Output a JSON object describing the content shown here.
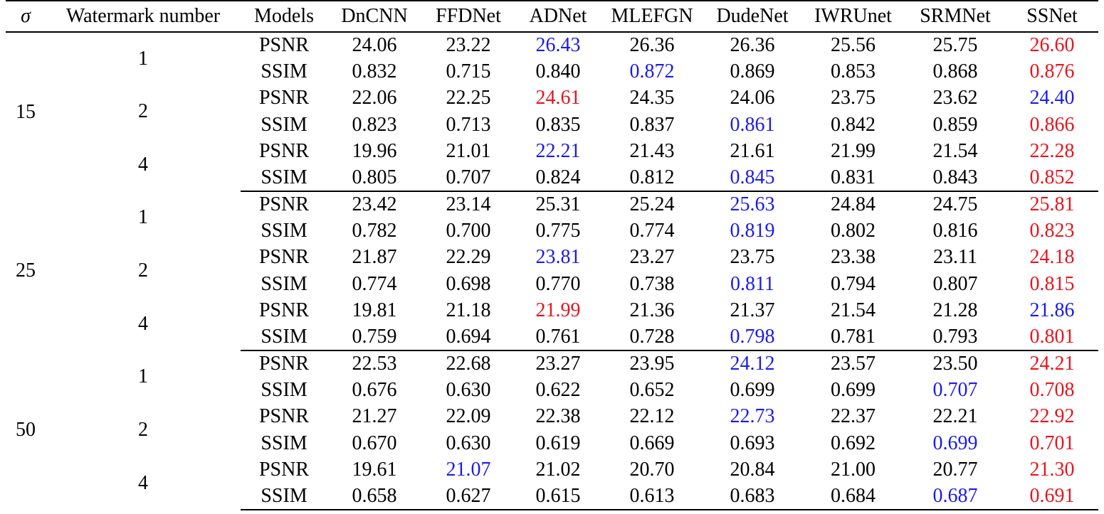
{
  "table": {
    "headers": [
      "σ",
      "Watermark number",
      "Models",
      "DnCNN",
      "FFDNet",
      "ADNet",
      "MLEFGN",
      "DudeNet",
      "IWRUnet",
      "SRMNet",
      "SSNet"
    ],
    "colors": {
      "best": "#e8141c",
      "second": "#1a1af0"
    },
    "groups": [
      {
        "sigma": "15",
        "watermarks": [
          {
            "number": "1",
            "rows": [
              {
                "metric": "PSNR",
                "values": [
                  "24.06",
                  "23.22",
                  "26.43",
                  "26.36",
                  "26.36",
                  "25.56",
                  "25.75",
                  "26.60"
                ],
                "best_index": 7,
                "second_index": 2
              },
              {
                "metric": "SSIM",
                "values": [
                  "0.832",
                  "0.715",
                  "0.840",
                  "0.872",
                  "0.869",
                  "0.853",
                  "0.868",
                  "0.876"
                ],
                "best_index": 7,
                "second_index": 3
              }
            ]
          },
          {
            "number": "2",
            "rows": [
              {
                "metric": "PSNR",
                "values": [
                  "22.06",
                  "22.25",
                  "24.61",
                  "24.35",
                  "24.06",
                  "23.75",
                  "23.62",
                  "24.40"
                ],
                "best_index": 2,
                "second_index": 7
              },
              {
                "metric": "SSIM",
                "values": [
                  "0.823",
                  "0.713",
                  "0.835",
                  "0.837",
                  "0.861",
                  "0.842",
                  "0.859",
                  "0.866"
                ],
                "best_index": 7,
                "second_index": 4
              }
            ]
          },
          {
            "number": "4",
            "rows": [
              {
                "metric": "PSNR",
                "values": [
                  "19.96",
                  "21.01",
                  "22.21",
                  "21.43",
                  "21.61",
                  "21.99",
                  "21.54",
                  "22.28"
                ],
                "best_index": 7,
                "second_index": 2
              },
              {
                "metric": "SSIM",
                "values": [
                  "0.805",
                  "0.707",
                  "0.824",
                  "0.812",
                  "0.845",
                  "0.831",
                  "0.843",
                  "0.852"
                ],
                "best_index": 7,
                "second_index": 4
              }
            ]
          }
        ]
      },
      {
        "sigma": "25",
        "watermarks": [
          {
            "number": "1",
            "rows": [
              {
                "metric": "PSNR",
                "values": [
                  "23.42",
                  "23.14",
                  "25.31",
                  "25.24",
                  "25.63",
                  "24.84",
                  "24.75",
                  "25.81"
                ],
                "best_index": 7,
                "second_index": 4
              },
              {
                "metric": "SSIM",
                "values": [
                  "0.782",
                  "0.700",
                  "0.775",
                  "0.774",
                  "0.819",
                  "0.802",
                  "0.816",
                  "0.823"
                ],
                "best_index": 7,
                "second_index": 4
              }
            ]
          },
          {
            "number": "2",
            "rows": [
              {
                "metric": "PSNR",
                "values": [
                  "21.87",
                  "22.29",
                  "23.81",
                  "23.27",
                  "23.75",
                  "23.38",
                  "23.11",
                  "24.18"
                ],
                "best_index": 7,
                "second_index": 2
              },
              {
                "metric": "SSIM",
                "values": [
                  "0.774",
                  "0.698",
                  "0.770",
                  "0.738",
                  "0.811",
                  "0.794",
                  "0.807",
                  "0.815"
                ],
                "best_index": 7,
                "second_index": 4
              }
            ]
          },
          {
            "number": "4",
            "rows": [
              {
                "metric": "PSNR",
                "values": [
                  "19.81",
                  "21.18",
                  "21.99",
                  "21.36",
                  "21.37",
                  "21.54",
                  "21.28",
                  "21.86"
                ],
                "best_index": 2,
                "second_index": 7
              },
              {
                "metric": "SSIM",
                "values": [
                  "0.759",
                  "0.694",
                  "0.761",
                  "0.728",
                  "0.798",
                  "0.781",
                  "0.793",
                  "0.801"
                ],
                "best_index": 7,
                "second_index": 4
              }
            ]
          }
        ]
      },
      {
        "sigma": "50",
        "watermarks": [
          {
            "number": "1",
            "rows": [
              {
                "metric": "PSNR",
                "values": [
                  "22.53",
                  "22.68",
                  "23.27",
                  "23.95",
                  "24.12",
                  "23.57",
                  "23.50",
                  "24.21"
                ],
                "best_index": 7,
                "second_index": 4
              },
              {
                "metric": "SSIM",
                "values": [
                  "0.676",
                  "0.630",
                  "0.622",
                  "0.652",
                  "0.699",
                  "0.699",
                  "0.707",
                  "0.708"
                ],
                "best_index": 7,
                "second_index": 6
              }
            ]
          },
          {
            "number": "2",
            "rows": [
              {
                "metric": "PSNR",
                "values": [
                  "21.27",
                  "22.09",
                  "22.38",
                  "22.12",
                  "22.73",
                  "22.37",
                  "22.21",
                  "22.92"
                ],
                "best_index": 7,
                "second_index": 4
              },
              {
                "metric": "SSIM",
                "values": [
                  "0.670",
                  "0.630",
                  "0.619",
                  "0.669",
                  "0.693",
                  "0.692",
                  "0.699",
                  "0.701"
                ],
                "best_index": 7,
                "second_index": 6
              }
            ]
          },
          {
            "number": "4",
            "rows": [
              {
                "metric": "PSNR",
                "values": [
                  "19.61",
                  "21.07",
                  "21.02",
                  "20.70",
                  "20.84",
                  "21.00",
                  "20.77",
                  "21.30"
                ],
                "best_index": 7,
                "second_index": 1
              },
              {
                "metric": "SSIM",
                "values": [
                  "0.658",
                  "0.627",
                  "0.615",
                  "0.613",
                  "0.683",
                  "0.684",
                  "0.687",
                  "0.691"
                ],
                "best_index": 7,
                "second_index": 6
              }
            ]
          }
        ]
      }
    ]
  }
}
